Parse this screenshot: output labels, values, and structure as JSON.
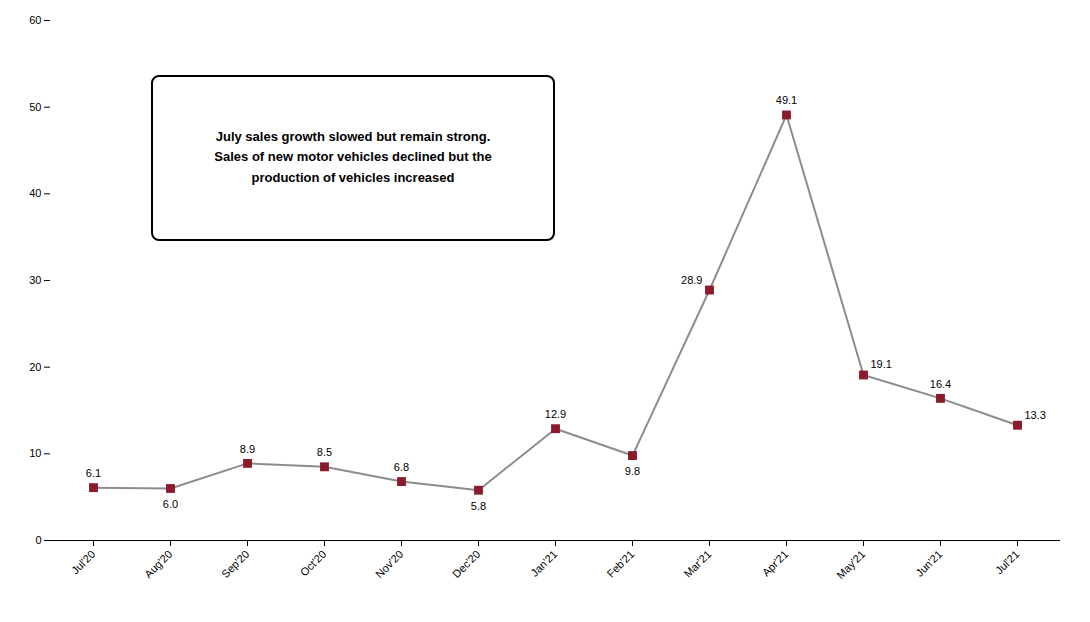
{
  "chart_data": {
    "type": "line",
    "categories": [
      "Jul'20",
      "Aug'20",
      "Sep'20",
      "Oct'20",
      "Nov'20",
      "Dec'20",
      "Jan'21",
      "Feb'21",
      "Mar'21",
      "Apr'21",
      "May'21",
      "Jun'21",
      "Jul'21"
    ],
    "values": [
      6.1,
      6.0,
      8.9,
      8.5,
      6.8,
      5.8,
      12.9,
      9.8,
      28.9,
      49.1,
      19.1,
      16.4,
      13.3
    ],
    "value_labels": [
      "6.1",
      "6.0",
      "8.9",
      "8.5",
      "6.8",
      "5.8",
      "12.9",
      "9.8",
      "28.9",
      "49.1",
      "19.1",
      "16.4",
      "13.3"
    ],
    "data_labels": true,
    "color": "#8B1A2A",
    "marker": "square",
    "ylim": [
      0,
      60
    ],
    "yticks": [
      0,
      10,
      20,
      30,
      40,
      50,
      60
    ],
    "grid": false,
    "annotation": "July sales growth slowed but remain strong.\nSales of new motor vehicles declined but the\nproduction of vehicles increased"
  }
}
